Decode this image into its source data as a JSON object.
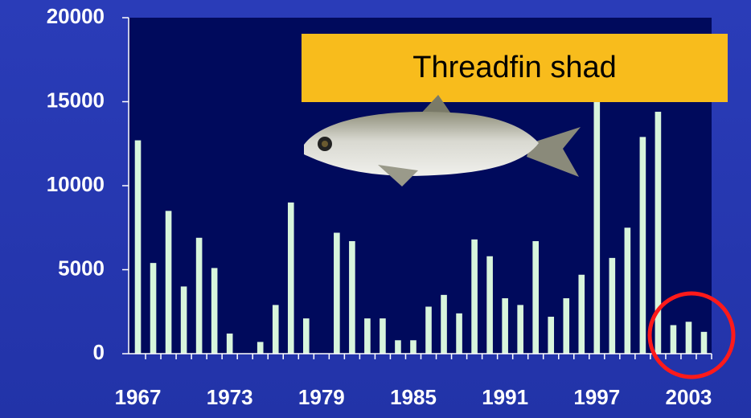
{
  "chart_data": {
    "type": "bar",
    "annotation": "Threadfin shad",
    "categories": [
      "1967",
      null,
      null,
      null,
      null,
      null,
      "1973",
      null,
      null,
      null,
      null,
      null,
      "1979",
      null,
      null,
      null,
      null,
      null,
      "1985",
      null,
      null,
      null,
      null,
      null,
      "1991",
      null,
      null,
      null,
      null,
      null,
      "1997",
      null,
      null,
      null,
      null,
      null,
      "2003",
      null
    ],
    "values": [
      12700,
      5400,
      8500,
      4000,
      6900,
      5100,
      1200,
      0,
      700,
      2900,
      9000,
      2100,
      0,
      7200,
      6700,
      2100,
      2100,
      800,
      800,
      2800,
      3500,
      2400,
      6800,
      5800,
      3300,
      2900,
      6700,
      2200,
      3300,
      4700,
      16000,
      5700,
      7500,
      12900,
      14400,
      1700,
      1900,
      1300
    ],
    "color": "#d8f5dc",
    "ylim": [
      0,
      20000
    ],
    "yticks": [
      0,
      5000,
      10000,
      15000,
      20000
    ],
    "grid": false
  }
}
